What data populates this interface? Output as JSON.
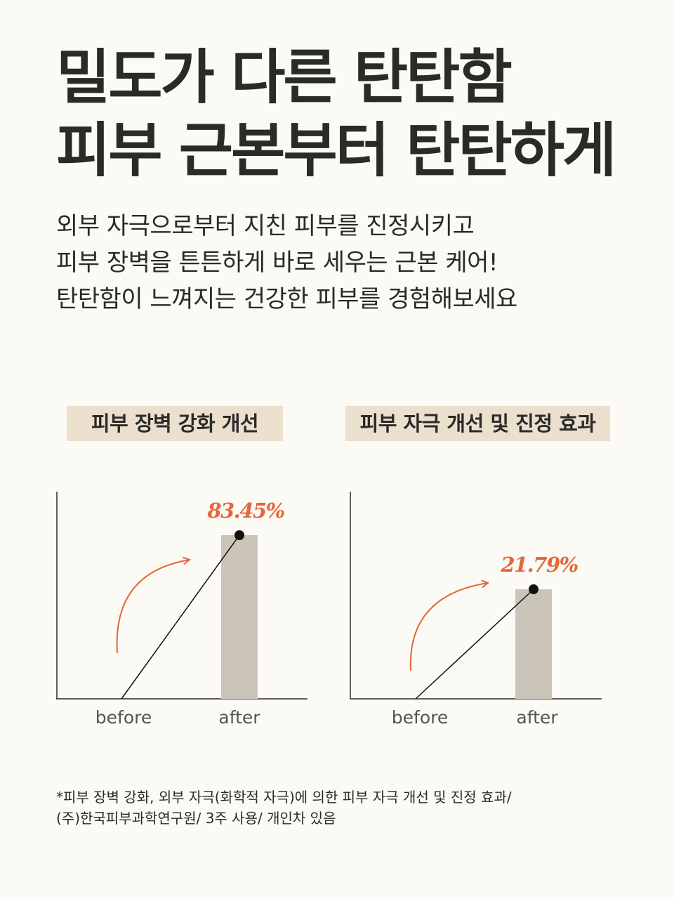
{
  "headline": {
    "line1": "밀도가 다른 탄탄함",
    "line2": "피부 근본부터 탄탄하게"
  },
  "description": {
    "line1": "외부 자극으로부터 지친 피부를 진정시키고",
    "line2": "피부 장벽을 튼튼하게 바로 세우는 근본 케어!",
    "line3": "탄탄함이 느껴지는 건강한 피부를 경험해보세요"
  },
  "colors": {
    "background": "#fcfaf5",
    "label_bg": "#ebdfce",
    "bar": "#cbc4b9",
    "accent": "#e3683b",
    "text": "#2b2a27"
  },
  "chart_data": [
    {
      "type": "bar",
      "title": "피부 장벽 강화 개선",
      "categories": [
        "before",
        "after"
      ],
      "value_label": "83.45%",
      "after_value": 83.45,
      "ylim": [
        0,
        100
      ]
    },
    {
      "type": "bar",
      "title": "피부 자극 개선 및 진정 효과",
      "categories": [
        "before",
        "after"
      ],
      "value_label": "21.79%",
      "after_value": 21.79,
      "ylim": [
        0,
        100
      ]
    }
  ],
  "footnote": {
    "line1": "*피부 장벽 강화, 외부 자극(화학적 자극)에 의한 피부 자극 개선 및 진정 효과/",
    "line2": "(주)한국피부과학연구원/ 3주 사용/ 개인차 있음"
  }
}
